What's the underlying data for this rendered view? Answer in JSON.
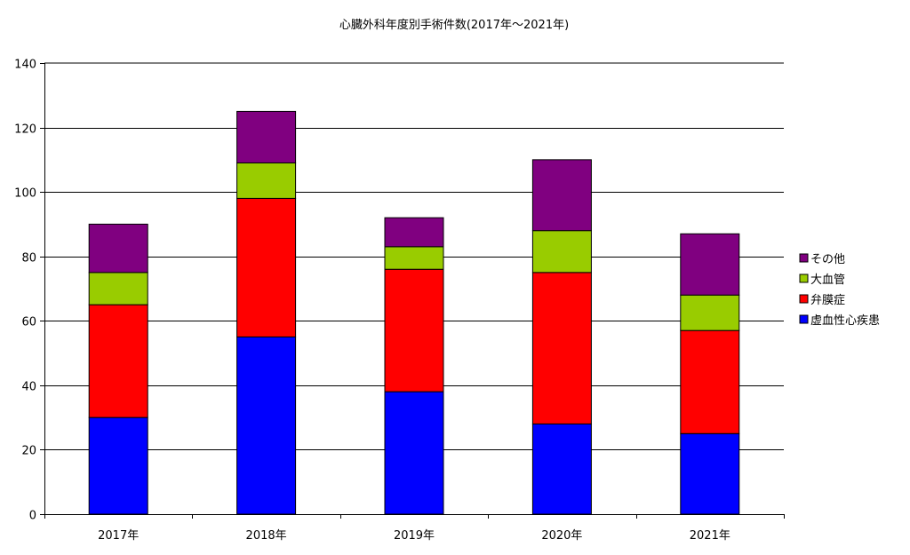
{
  "chart_data": {
    "type": "bar",
    "stacked": true,
    "title": "心臓外科年度別手術件数(2017年～2021年)",
    "xlabel": "",
    "ylabel": "",
    "categories": [
      "2017年",
      "2018年",
      "2019年",
      "2020年",
      "2021年"
    ],
    "series": [
      {
        "name": "虚血性心疾患",
        "color": "#0000ff",
        "values": [
          30,
          55,
          38,
          28,
          25
        ]
      },
      {
        "name": "弁膜症",
        "color": "#ff0000",
        "values": [
          35,
          43,
          38,
          47,
          32
        ]
      },
      {
        "name": "大血管",
        "color": "#99cc00",
        "values": [
          10,
          11,
          7,
          13,
          11
        ]
      },
      {
        "name": "その他",
        "color": "#800080",
        "values": [
          15,
          16,
          9,
          22,
          19
        ]
      }
    ],
    "ylim": [
      0,
      140
    ],
    "yticks": [
      0,
      20,
      40,
      60,
      80,
      100,
      120,
      140
    ],
    "grid": true,
    "legend": {
      "placement": "right",
      "order": [
        "その他",
        "大血管",
        "弁膜症",
        "虚血性心疾患"
      ]
    }
  }
}
